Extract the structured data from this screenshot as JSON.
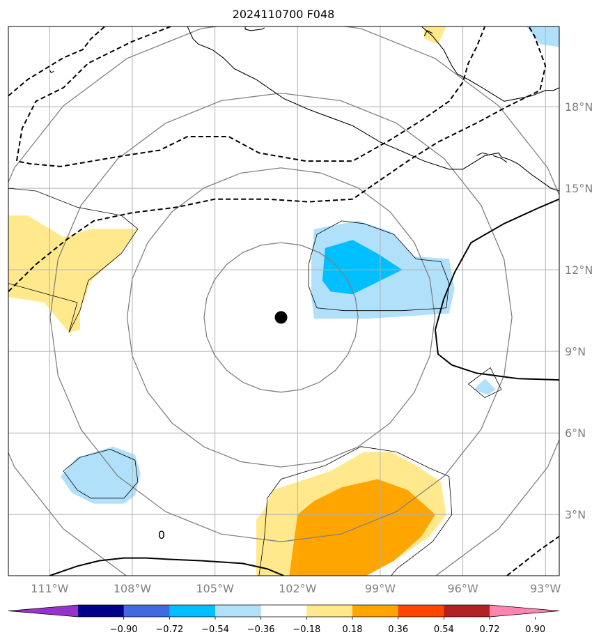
{
  "chart_data": {
    "type": "contour-map",
    "title": "2024110700 F048",
    "lon_ticks": [
      {
        "value": -111,
        "label": "111°W"
      },
      {
        "value": -108,
        "label": "108°W"
      },
      {
        "value": -105,
        "label": "105°W"
      },
      {
        "value": -102,
        "label": "102°W"
      },
      {
        "value": -99,
        "label": "99°W"
      },
      {
        "value": -96,
        "label": "96°W"
      },
      {
        "value": -93,
        "label": "93°W"
      }
    ],
    "lat_ticks": [
      {
        "value": 3,
        "label": "3°N"
      },
      {
        "value": 6,
        "label": "6°N"
      },
      {
        "value": 9,
        "label": "9°N"
      },
      {
        "value": 12,
        "label": "12°N"
      },
      {
        "value": 15,
        "label": "15°N"
      },
      {
        "value": 18,
        "label": "18°N"
      }
    ],
    "xlim": [
      -112.5,
      -92.5
    ],
    "ylim": [
      0.75,
      20.95
    ],
    "center": {
      "lon": -102.6,
      "lat": 10.25
    },
    "range_rings_deg": [
      2.75,
      5.5,
      8.25,
      11.0
    ],
    "contour_zero_label": "0",
    "colorbar": {
      "colors": [
        "#9932cc",
        "#00008b",
        "#4169e1",
        "#00bfff",
        "#b0e0fa",
        "#ffffff",
        "#ffe98c",
        "#ffa500",
        "#ff4500",
        "#b22222",
        "#ff85b0"
      ],
      "ticks": [
        {
          "value": -0.9,
          "label": "−0.90"
        },
        {
          "value": -0.72,
          "label": "−0.72"
        },
        {
          "value": -0.54,
          "label": "−0.54"
        },
        {
          "value": -0.36,
          "label": "−0.36"
        },
        {
          "value": -0.18,
          "label": "−0.18"
        },
        {
          "value": 0.18,
          "label": "0.18"
        },
        {
          "value": 0.36,
          "label": "0.36"
        },
        {
          "value": 0.54,
          "label": "0.54"
        },
        {
          "value": 0.72,
          "label": "0.72"
        },
        {
          "value": 0.9,
          "label": "0.90"
        }
      ]
    },
    "filled_regions": [
      {
        "level": "0.18-0.36",
        "color": "#ffe98c",
        "lonlat": [
          [
            -112.5,
            14.0
          ],
          [
            -111.8,
            14.0
          ],
          [
            -110.5,
            13.2
          ],
          [
            -109.5,
            13.5
          ],
          [
            -107.8,
            13.5
          ],
          [
            -108.5,
            12.5
          ],
          [
            -109.5,
            11.6
          ],
          [
            -109.9,
            10.5
          ],
          [
            -109.9,
            9.8
          ],
          [
            -110.3,
            9.7
          ],
          [
            -111.2,
            10.8
          ],
          [
            -112.5,
            11.0
          ]
        ]
      },
      {
        "level": "0.18-0.36",
        "color": "#ffe98c",
        "lonlat": [
          [
            -103.5,
            0.75
          ],
          [
            -99.5,
            0.75
          ],
          [
            -98.5,
            1.3
          ],
          [
            -97.2,
            2.2
          ],
          [
            -96.6,
            3.0
          ],
          [
            -96.8,
            4.2
          ],
          [
            -97.7,
            4.8
          ],
          [
            -98.6,
            5.3
          ],
          [
            -99.6,
            5.3
          ],
          [
            -100.8,
            4.6
          ],
          [
            -102.0,
            4.2
          ],
          [
            -102.9,
            3.9
          ],
          [
            -103.2,
            3.2
          ],
          [
            -103.5,
            2.8
          ]
        ]
      },
      {
        "level": "0.18-0.36",
        "color": "#ffe98c",
        "lonlat": [
          [
            -97.4,
            20.95
          ],
          [
            -96.6,
            20.95
          ],
          [
            -96.9,
            20.3
          ],
          [
            -97.4,
            20.5
          ]
        ]
      },
      {
        "level": "0.36-0.54",
        "color": "#ffa500",
        "lonlat": [
          [
            -102.3,
            0.75
          ],
          [
            -99.5,
            0.75
          ],
          [
            -98.5,
            1.3
          ],
          [
            -97.5,
            2.2
          ],
          [
            -97.0,
            3.0
          ],
          [
            -98.0,
            3.9
          ],
          [
            -99.1,
            4.3
          ],
          [
            -100.4,
            4.0
          ],
          [
            -101.4,
            3.5
          ],
          [
            -102.0,
            3.0
          ]
        ]
      },
      {
        "level": "-0.36--0.18",
        "color": "#b0e0fa",
        "lonlat": [
          [
            -101.4,
            13.5
          ],
          [
            -99.8,
            13.8
          ],
          [
            -98.6,
            13.4
          ],
          [
            -97.8,
            12.5
          ],
          [
            -96.5,
            12.4
          ],
          [
            -96.3,
            11.3
          ],
          [
            -96.5,
            10.4
          ],
          [
            -98.0,
            10.3
          ],
          [
            -99.5,
            10.2
          ],
          [
            -101.4,
            10.2
          ],
          [
            -101.5,
            11.0
          ],
          [
            -101.5,
            12.4
          ]
        ]
      },
      {
        "level": "-0.36--0.18",
        "color": "#b0e0fa",
        "lonlat": [
          [
            -110.0,
            5.1
          ],
          [
            -108.7,
            5.5
          ],
          [
            -107.9,
            5.2
          ],
          [
            -107.7,
            4.5
          ],
          [
            -107.9,
            3.7
          ],
          [
            -108.3,
            3.4
          ],
          [
            -109.4,
            3.4
          ],
          [
            -110.2,
            3.8
          ],
          [
            -110.6,
            4.4
          ]
        ]
      },
      {
        "level": "-0.36--0.18",
        "color": "#b0e0fa",
        "lonlat": [
          [
            -95.2,
            8.0
          ],
          [
            -94.8,
            7.6
          ],
          [
            -95.1,
            7.4
          ],
          [
            -95.6,
            7.6
          ]
        ]
      },
      {
        "level": "-0.36--0.18",
        "color": "#b0e0fa",
        "lonlat": [
          [
            -93.7,
            20.95
          ],
          [
            -92.5,
            20.95
          ],
          [
            -92.5,
            20.2
          ],
          [
            -93.2,
            20.3
          ]
        ]
      },
      {
        "level": "-0.54--0.36",
        "color": "#00bfff",
        "lonlat": [
          [
            -101.0,
            12.8
          ],
          [
            -100.0,
            13.1
          ],
          [
            -99.1,
            12.6
          ],
          [
            -98.2,
            12.0
          ],
          [
            -99.0,
            11.6
          ],
          [
            -100.0,
            11.1
          ],
          [
            -100.8,
            11.2
          ],
          [
            -101.1,
            11.6
          ]
        ]
      }
    ],
    "thin_contours": [
      {
        "closed": true,
        "lonlat": [
          [
            -112.5,
            11.5
          ],
          [
            -110.0,
            10.8
          ],
          [
            -110.3,
            9.7
          ],
          [
            -109.9,
            10.5
          ],
          [
            -109.6,
            11.6
          ],
          [
            -108.4,
            12.6
          ],
          [
            -107.8,
            13.5
          ],
          [
            -108.4,
            14.0
          ],
          [
            -110.0,
            14.3
          ],
          [
            -111.5,
            14.9
          ],
          [
            -112.5,
            15.0
          ]
        ]
      },
      {
        "closed": true,
        "lonlat": [
          [
            -101.6,
            12.2
          ],
          [
            -101.3,
            13.3
          ],
          [
            -100.4,
            13.8
          ],
          [
            -99.6,
            13.7
          ],
          [
            -98.5,
            13.3
          ],
          [
            -97.7,
            12.4
          ],
          [
            -96.8,
            12.3
          ],
          [
            -96.5,
            11.5
          ],
          [
            -96.6,
            10.6
          ],
          [
            -98.2,
            10.5
          ],
          [
            -100.3,
            10.5
          ],
          [
            -101.3,
            10.6
          ],
          [
            -101.6,
            11.4
          ]
        ]
      },
      {
        "closed": true,
        "lonlat": [
          [
            -110.5,
            4.6
          ],
          [
            -109.9,
            5.1
          ],
          [
            -108.8,
            5.4
          ],
          [
            -107.9,
            5.0
          ],
          [
            -107.8,
            4.2
          ],
          [
            -108.3,
            3.6
          ],
          [
            -109.5,
            3.6
          ],
          [
            -110.0,
            3.9
          ]
        ]
      },
      {
        "closed": true,
        "lonlat": [
          [
            -95.8,
            7.8
          ],
          [
            -95.0,
            8.4
          ],
          [
            -94.6,
            7.6
          ],
          [
            -95.2,
            7.3
          ]
        ]
      },
      {
        "closed": false,
        "lonlat": [
          [
            -103.4,
            0.75
          ],
          [
            -103.2,
            2.2
          ],
          [
            -103.1,
            3.6
          ],
          [
            -102.6,
            4.3
          ],
          [
            -101.0,
            4.8
          ],
          [
            -99.7,
            5.5
          ],
          [
            -98.4,
            5.3
          ],
          [
            -97.2,
            4.7
          ],
          [
            -96.5,
            4.4
          ],
          [
            -96.4,
            3.0
          ],
          [
            -97.1,
            2.0
          ],
          [
            -98.4,
            1.0
          ],
          [
            -98.6,
            0.75
          ]
        ]
      }
    ],
    "dashed_contours": [
      {
        "lonlat": [
          [
            -112.5,
            18.4
          ],
          [
            -111.8,
            19.0
          ],
          [
            -110.5,
            19.8
          ],
          [
            -109.8,
            20.1
          ],
          [
            -109.5,
            20.5
          ],
          [
            -109.0,
            20.95
          ]
        ]
      },
      {
        "lonlat": [
          [
            -106.6,
            20.95
          ],
          [
            -108.0,
            20.4
          ],
          [
            -109.6,
            19.6
          ],
          [
            -110.5,
            18.7
          ],
          [
            -111.5,
            18.2
          ],
          [
            -112.0,
            17.2
          ],
          [
            -112.2,
            16.0
          ],
          [
            -111.7,
            15.9
          ],
          [
            -110.6,
            15.8
          ],
          [
            -108.3,
            16.2
          ],
          [
            -107.0,
            16.4
          ],
          [
            -106.0,
            16.9
          ],
          [
            -104.5,
            16.9
          ],
          [
            -103.4,
            16.3
          ],
          [
            -101.7,
            16.0
          ],
          [
            -100.0,
            16.0
          ],
          [
            -98.6,
            16.8
          ],
          [
            -97.5,
            17.5
          ],
          [
            -96.5,
            18.2
          ],
          [
            -96.0,
            18.9
          ],
          [
            -95.8,
            19.6
          ],
          [
            -95.5,
            20.2
          ],
          [
            -95.2,
            20.95
          ]
        ]
      },
      {
        "lonlat": [
          [
            -112.5,
            11.2
          ],
          [
            -111.5,
            12.2
          ],
          [
            -110.4,
            13.1
          ],
          [
            -109.4,
            13.8
          ],
          [
            -108.0,
            14.1
          ],
          [
            -106.4,
            14.3
          ],
          [
            -105.0,
            14.6
          ],
          [
            -103.1,
            14.6
          ],
          [
            -101.6,
            14.5
          ],
          [
            -100.0,
            14.6
          ],
          [
            -99.0,
            15.3
          ],
          [
            -98.0,
            16.0
          ],
          [
            -96.9,
            16.7
          ],
          [
            -95.5,
            17.4
          ],
          [
            -94.4,
            18.0
          ],
          [
            -93.2,
            18.6
          ],
          [
            -93.0,
            19.5
          ],
          [
            -93.4,
            20.6
          ],
          [
            -93.6,
            20.95
          ]
        ]
      },
      {
        "lonlat": [
          [
            -94.4,
            0.75
          ],
          [
            -93.2,
            1.7
          ],
          [
            -92.5,
            2.2
          ]
        ]
      }
    ],
    "solid_contours": [
      {
        "lonlat": [
          [
            -111.0,
            0.75
          ],
          [
            -110.0,
            1.1
          ],
          [
            -109.2,
            1.3
          ],
          [
            -108.3,
            1.4
          ],
          [
            -107.5,
            1.4
          ],
          [
            -106.6,
            1.35
          ],
          [
            -105.5,
            1.3
          ],
          [
            -104.0,
            1.2
          ],
          [
            -103.1,
            1.0
          ],
          [
            -102.5,
            0.75
          ]
        ]
      },
      {
        "lonlat": [
          [
            -97.0,
            9.8
          ],
          [
            -96.9,
            8.9
          ],
          [
            -96.4,
            8.5
          ],
          [
            -95.5,
            8.2
          ],
          [
            -94.0,
            8.0
          ],
          [
            -92.5,
            7.95
          ]
        ]
      },
      {
        "lonlat": [
          [
            -97.0,
            9.8
          ],
          [
            -96.7,
            10.9
          ],
          [
            -96.3,
            11.9
          ],
          [
            -95.7,
            13.0
          ],
          [
            -94.5,
            13.7
          ],
          [
            -93.2,
            14.3
          ],
          [
            -92.5,
            14.6
          ]
        ]
      }
    ],
    "coastlines": [
      {
        "lonlat": [
          [
            -106.0,
            20.95
          ],
          [
            -105.8,
            20.5
          ],
          [
            -105.6,
            20.3
          ],
          [
            -105.1,
            20.1
          ],
          [
            -104.7,
            19.8
          ],
          [
            -104.3,
            19.4
          ],
          [
            -103.5,
            19.0
          ],
          [
            -102.5,
            18.3
          ],
          [
            -101.6,
            17.9
          ],
          [
            -100.8,
            17.6
          ],
          [
            -100.0,
            17.3
          ],
          [
            -99.0,
            16.7
          ],
          [
            -98.3,
            16.4
          ],
          [
            -97.4,
            16.0
          ],
          [
            -96.5,
            15.7
          ],
          [
            -96.0,
            15.7
          ],
          [
            -95.2,
            16.2
          ],
          [
            -94.7,
            16.3
          ],
          [
            -94.6,
            16.15
          ],
          [
            -94.3,
            16.05
          ],
          [
            -94.0,
            15.9
          ],
          [
            -93.5,
            15.5
          ],
          [
            -92.8,
            15.0
          ],
          [
            -92.5,
            14.9
          ]
        ]
      },
      {
        "lonlat": [
          [
            -103.9,
            20.95
          ],
          [
            -103.9,
            20.85
          ],
          [
            -103.7,
            20.8
          ],
          [
            -103.3,
            20.85
          ],
          [
            -103.2,
            20.9
          ]
        ]
      },
      {
        "lonlat": [
          [
            -97.5,
            20.95
          ],
          [
            -97.1,
            20.6
          ],
          [
            -96.7,
            20.1
          ],
          [
            -96.4,
            19.5
          ],
          [
            -96.2,
            19.2
          ],
          [
            -95.8,
            19.0
          ],
          [
            -95.3,
            18.7
          ],
          [
            -94.5,
            18.2
          ],
          [
            -94.0,
            18.3
          ],
          [
            -93.5,
            18.4
          ],
          [
            -93.0,
            18.6
          ],
          [
            -92.7,
            18.6
          ],
          [
            -92.5,
            18.7
          ]
        ]
      },
      {
        "lonlat": [
          [
            -97.4,
            20.6
          ],
          [
            -97.3,
            20.8
          ],
          [
            -97.1,
            20.7
          ]
        ]
      },
      {
        "lonlat": [
          [
            -111.0,
            19.35
          ],
          [
            -110.95,
            19.25
          ],
          [
            -110.85,
            19.3
          ]
        ]
      },
      {
        "lonlat": [
          [
            -95.5,
            16.2
          ],
          [
            -95.3,
            16.3
          ],
          [
            -95.1,
            16.25
          ]
        ]
      },
      {
        "lonlat": [
          [
            -94.9,
            16.2
          ],
          [
            -94.6,
            16.1
          ],
          [
            -94.4,
            15.95
          ]
        ]
      }
    ]
  }
}
